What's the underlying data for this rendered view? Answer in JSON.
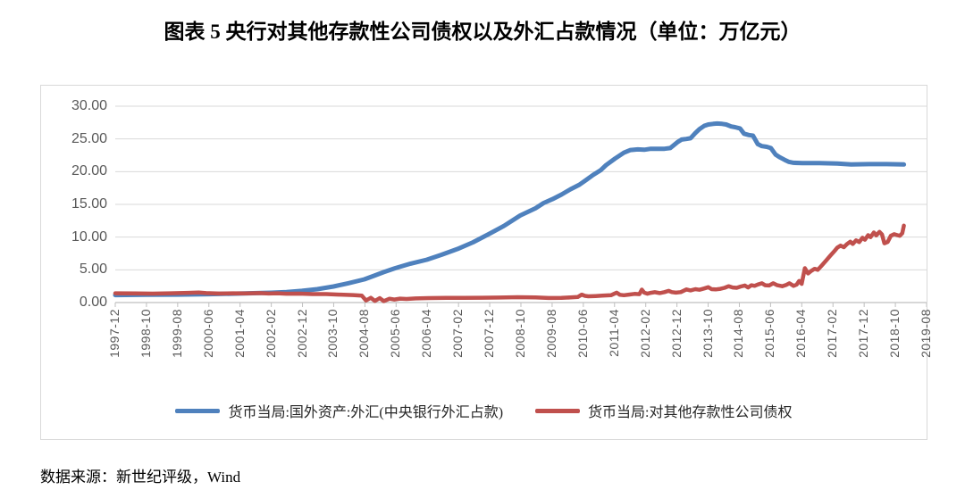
{
  "title": "图表 5  央行对其他存款性公司债权以及外汇占款情况（单位：万亿元）",
  "source_note": "数据来源：新世纪评级，Wind",
  "chart_data": {
    "type": "line",
    "unit": "万亿元",
    "grid": "horizontal",
    "legend_position": "bottom",
    "ylim": [
      0,
      30
    ],
    "y_tick_labels": [
      "0.00",
      "5.00",
      "10.00",
      "15.00",
      "20.00",
      "25.00",
      "30.00"
    ],
    "x_tick_labels": [
      "1997-12",
      "1998-10",
      "1999-08",
      "2000-06",
      "2001-04",
      "2002-02",
      "2002-12",
      "2003-10",
      "2004-08",
      "2005-06",
      "2006-04",
      "2007-02",
      "2007-12",
      "2008-10",
      "2009-08",
      "2010-06",
      "2011-04",
      "2012-02",
      "2012-12",
      "2013-10",
      "2014-08",
      "2015-06",
      "2016-04",
      "2017-02",
      "2017-12",
      "2018-10",
      "2019-08"
    ],
    "axis_color": "#bfbfbf",
    "gridline_color": "#d9d9d9",
    "label_color": "#595959",
    "series": [
      {
        "name": "货币当局:国外资产:外汇(中央银行外汇占款)",
        "color": "#4F81BD",
        "stroke_width": 5,
        "points": [
          [
            0.0,
            1.15
          ],
          [
            0.038,
            1.18
          ],
          [
            0.077,
            1.22
          ],
          [
            0.115,
            1.28
          ],
          [
            0.154,
            1.38
          ],
          [
            0.175,
            1.44
          ],
          [
            0.192,
            1.5
          ],
          [
            0.211,
            1.6
          ],
          [
            0.23,
            1.78
          ],
          [
            0.249,
            2.05
          ],
          [
            0.269,
            2.45
          ],
          [
            0.287,
            2.95
          ],
          [
            0.307,
            3.55
          ],
          [
            0.32,
            4.15
          ],
          [
            0.331,
            4.65
          ],
          [
            0.345,
            5.25
          ],
          [
            0.364,
            5.95
          ],
          [
            0.384,
            6.55
          ],
          [
            0.402,
            7.3
          ],
          [
            0.422,
            8.2
          ],
          [
            0.441,
            9.2
          ],
          [
            0.461,
            10.5
          ],
          [
            0.479,
            11.7
          ],
          [
            0.499,
            13.3
          ],
          [
            0.518,
            14.4
          ],
          [
            0.528,
            15.2
          ],
          [
            0.539,
            15.8
          ],
          [
            0.55,
            16.5
          ],
          [
            0.561,
            17.3
          ],
          [
            0.572,
            18.0
          ],
          [
            0.58,
            18.7
          ],
          [
            0.589,
            19.5
          ],
          [
            0.598,
            20.2
          ],
          [
            0.605,
            21.0
          ],
          [
            0.616,
            22.0
          ],
          [
            0.627,
            22.9
          ],
          [
            0.635,
            23.3
          ],
          [
            0.644,
            23.4
          ],
          [
            0.652,
            23.35
          ],
          [
            0.66,
            23.5
          ],
          [
            0.668,
            23.5
          ],
          [
            0.677,
            23.5
          ],
          [
            0.684,
            23.6
          ],
          [
            0.693,
            24.5
          ],
          [
            0.698,
            24.9
          ],
          [
            0.704,
            25.0
          ],
          [
            0.709,
            25.1
          ],
          [
            0.715,
            25.9
          ],
          [
            0.72,
            26.5
          ],
          [
            0.726,
            27.0
          ],
          [
            0.731,
            27.2
          ],
          [
            0.737,
            27.3
          ],
          [
            0.742,
            27.35
          ],
          [
            0.748,
            27.3
          ],
          [
            0.753,
            27.2
          ],
          [
            0.759,
            26.9
          ],
          [
            0.764,
            26.8
          ],
          [
            0.77,
            26.6
          ],
          [
            0.775,
            25.8
          ],
          [
            0.781,
            25.6
          ],
          [
            0.786,
            25.5
          ],
          [
            0.792,
            24.2
          ],
          [
            0.797,
            23.9
          ],
          [
            0.803,
            23.8
          ],
          [
            0.808,
            23.6
          ],
          [
            0.814,
            22.6
          ],
          [
            0.819,
            22.2
          ],
          [
            0.825,
            21.8
          ],
          [
            0.83,
            21.5
          ],
          [
            0.836,
            21.35
          ],
          [
            0.847,
            21.3
          ],
          [
            0.868,
            21.3
          ],
          [
            0.89,
            21.25
          ],
          [
            0.907,
            21.1
          ],
          [
            0.929,
            21.15
          ],
          [
            0.951,
            21.15
          ],
          [
            0.972,
            21.1
          ]
        ]
      },
      {
        "name": "货币当局:对其他存款性公司债权",
        "color": "#C0504D",
        "stroke_width": 4.5,
        "points": [
          [
            0.0,
            1.42
          ],
          [
            0.024,
            1.4
          ],
          [
            0.046,
            1.36
          ],
          [
            0.068,
            1.42
          ],
          [
            0.09,
            1.48
          ],
          [
            0.103,
            1.53
          ],
          [
            0.112,
            1.45
          ],
          [
            0.128,
            1.38
          ],
          [
            0.145,
            1.42
          ],
          [
            0.161,
            1.4
          ],
          [
            0.178,
            1.45
          ],
          [
            0.189,
            1.38
          ],
          [
            0.2,
            1.42
          ],
          [
            0.211,
            1.35
          ],
          [
            0.227,
            1.36
          ],
          [
            0.243,
            1.3
          ],
          [
            0.26,
            1.3
          ],
          [
            0.276,
            1.22
          ],
          [
            0.293,
            1.15
          ],
          [
            0.304,
            1.05
          ],
          [
            0.309,
            0.32
          ],
          [
            0.315,
            0.72
          ],
          [
            0.32,
            0.24
          ],
          [
            0.326,
            0.68
          ],
          [
            0.331,
            0.22
          ],
          [
            0.338,
            0.58
          ],
          [
            0.344,
            0.46
          ],
          [
            0.351,
            0.6
          ],
          [
            0.359,
            0.55
          ],
          [
            0.37,
            0.63
          ],
          [
            0.386,
            0.68
          ],
          [
            0.408,
            0.72
          ],
          [
            0.43,
            0.71
          ],
          [
            0.452,
            0.74
          ],
          [
            0.474,
            0.77
          ],
          [
            0.496,
            0.82
          ],
          [
            0.518,
            0.78
          ],
          [
            0.534,
            0.7
          ],
          [
            0.55,
            0.72
          ],
          [
            0.561,
            0.78
          ],
          [
            0.57,
            0.85
          ],
          [
            0.575,
            1.22
          ],
          [
            0.579,
            1.02
          ],
          [
            0.583,
            0.95
          ],
          [
            0.592,
            1.0
          ],
          [
            0.6,
            1.05
          ],
          [
            0.611,
            1.12
          ],
          [
            0.618,
            1.52
          ],
          [
            0.622,
            1.18
          ],
          [
            0.627,
            1.12
          ],
          [
            0.633,
            1.22
          ],
          [
            0.64,
            1.32
          ],
          [
            0.646,
            1.28
          ],
          [
            0.649,
            1.98
          ],
          [
            0.652,
            1.52
          ],
          [
            0.656,
            1.35
          ],
          [
            0.66,
            1.48
          ],
          [
            0.665,
            1.58
          ],
          [
            0.671,
            1.45
          ],
          [
            0.677,
            1.6
          ],
          [
            0.682,
            1.78
          ],
          [
            0.686,
            1.6
          ],
          [
            0.691,
            1.52
          ],
          [
            0.697,
            1.6
          ],
          [
            0.704,
            2.0
          ],
          [
            0.709,
            1.85
          ],
          [
            0.715,
            2.05
          ],
          [
            0.72,
            1.95
          ],
          [
            0.726,
            2.15
          ],
          [
            0.731,
            2.35
          ],
          [
            0.735,
            2.05
          ],
          [
            0.74,
            2.0
          ],
          [
            0.746,
            2.1
          ],
          [
            0.751,
            2.25
          ],
          [
            0.756,
            2.5
          ],
          [
            0.761,
            2.3
          ],
          [
            0.766,
            2.25
          ],
          [
            0.771,
            2.45
          ],
          [
            0.776,
            2.6
          ],
          [
            0.78,
            2.3
          ],
          [
            0.784,
            2.65
          ],
          [
            0.788,
            2.55
          ],
          [
            0.792,
            2.75
          ],
          [
            0.797,
            2.95
          ],
          [
            0.801,
            2.65
          ],
          [
            0.806,
            2.6
          ],
          [
            0.811,
            2.95
          ],
          [
            0.816,
            2.65
          ],
          [
            0.822,
            2.5
          ],
          [
            0.827,
            2.7
          ],
          [
            0.831,
            2.95
          ],
          [
            0.836,
            2.55
          ],
          [
            0.84,
            2.75
          ],
          [
            0.843,
            3.3
          ],
          [
            0.846,
            2.85
          ],
          [
            0.85,
            5.25
          ],
          [
            0.854,
            4.45
          ],
          [
            0.858,
            4.85
          ],
          [
            0.862,
            5.15
          ],
          [
            0.866,
            5.0
          ],
          [
            0.871,
            5.7
          ],
          [
            0.876,
            6.4
          ],
          [
            0.881,
            7.1
          ],
          [
            0.886,
            7.8
          ],
          [
            0.89,
            8.4
          ],
          [
            0.894,
            8.7
          ],
          [
            0.898,
            8.45
          ],
          [
            0.902,
            8.95
          ],
          [
            0.906,
            9.3
          ],
          [
            0.909,
            8.95
          ],
          [
            0.913,
            9.5
          ],
          [
            0.917,
            9.25
          ],
          [
            0.921,
            9.9
          ],
          [
            0.924,
            9.6
          ],
          [
            0.928,
            10.3
          ],
          [
            0.931,
            10.0
          ],
          [
            0.935,
            10.7
          ],
          [
            0.938,
            10.25
          ],
          [
            0.942,
            10.8
          ],
          [
            0.945,
            10.4
          ],
          [
            0.948,
            9.05
          ],
          [
            0.952,
            9.25
          ],
          [
            0.956,
            10.2
          ],
          [
            0.96,
            10.45
          ],
          [
            0.964,
            10.3
          ],
          [
            0.967,
            10.2
          ],
          [
            0.97,
            10.6
          ],
          [
            0.972,
            11.75
          ]
        ]
      }
    ]
  }
}
